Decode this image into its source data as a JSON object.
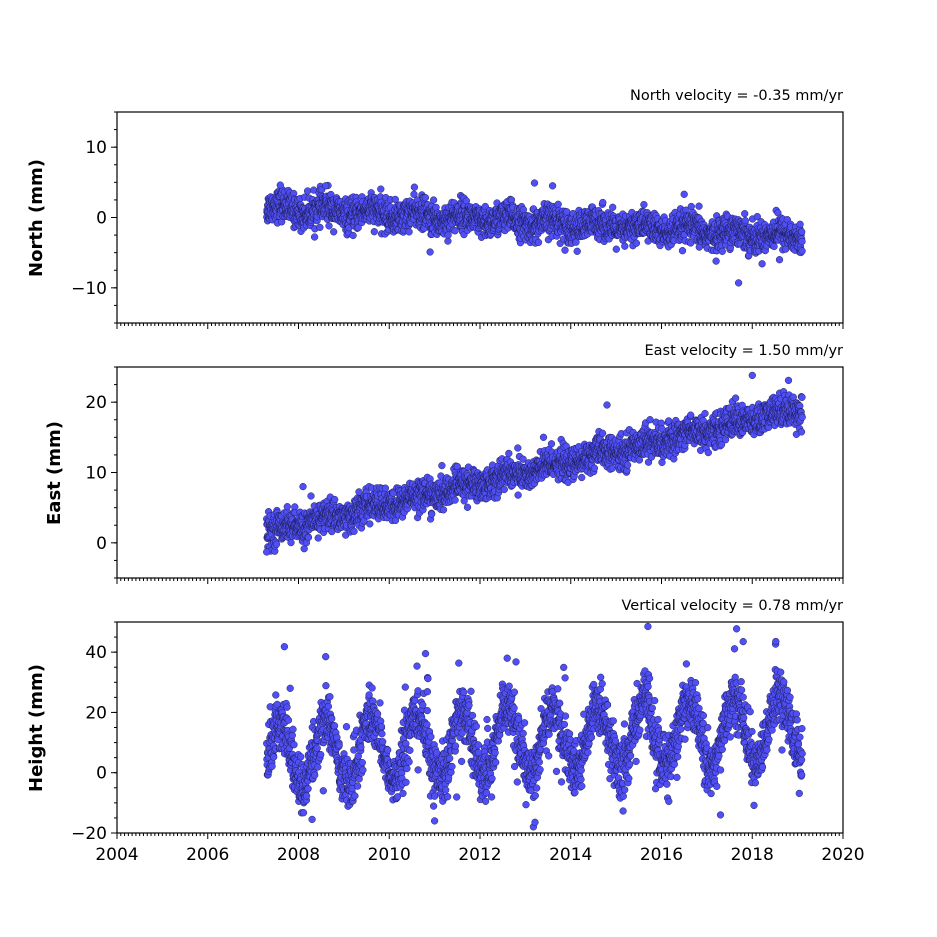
{
  "chart_data": [
    {
      "type": "scatter",
      "title": "North velocity = -0.35 mm/yr",
      "ylabel": "North (mm)",
      "xlim": [
        2004,
        2020
      ],
      "ylim": [
        -15,
        15
      ],
      "yticks": [
        -10,
        0,
        10
      ],
      "ytick_labels": [
        "−10",
        "0",
        "10"
      ],
      "x_start": 2007.3,
      "x_end": 2019.1,
      "velocity_mm_per_yr": -0.35,
      "offset_at_start": 1.4,
      "seasonal_amplitude": 0.6,
      "noise_sd": 1.1,
      "color": "#4f4ff5",
      "outliers": [
        [
          2007.6,
          4.6
        ],
        [
          2008.6,
          4.5
        ],
        [
          2010.9,
          -4.9
        ],
        [
          2013.2,
          4.9
        ],
        [
          2013.6,
          4.5
        ],
        [
          2016.5,
          3.3
        ],
        [
          2017.7,
          -9.3
        ],
        [
          2018.6,
          -6.0
        ]
      ]
    },
    {
      "type": "scatter",
      "title": "East velocity = 1.50 mm/yr",
      "ylabel": "East (mm)",
      "xlim": [
        2004,
        2020
      ],
      "ylim": [
        -5,
        25
      ],
      "yticks": [
        0,
        10,
        20
      ],
      "ytick_labels": [
        "0",
        "10",
        "20"
      ],
      "x_start": 2007.3,
      "x_end": 2019.1,
      "velocity_mm_per_yr": 1.5,
      "offset_at_start": 1.5,
      "seasonal_amplitude": 0.5,
      "noise_sd": 1.1,
      "color": "#4f4ff5",
      "outliers": [
        [
          2007.3,
          -1.3
        ],
        [
          2008.1,
          8.0
        ],
        [
          2014.8,
          19.6
        ],
        [
          2018.0,
          23.8
        ],
        [
          2018.8,
          23.1
        ],
        [
          2013.4,
          15.0
        ]
      ]
    },
    {
      "type": "scatter",
      "title": "Vertical velocity = 0.78 mm/yr",
      "ylabel": "Height (mm)",
      "xlim": [
        2004,
        2020
      ],
      "ylim": [
        -20,
        50
      ],
      "yticks": [
        -20,
        0,
        20,
        40
      ],
      "ytick_labels": [
        "−20",
        "0",
        "20",
        "40"
      ],
      "xticks": [
        2004,
        2006,
        2008,
        2010,
        2012,
        2014,
        2016,
        2018,
        2020
      ],
      "xtick_labels": [
        "2004",
        "2006",
        "2008",
        "2010",
        "2012",
        "2014",
        "2016",
        "2018",
        "2020"
      ],
      "x_start": 2007.3,
      "x_end": 2019.1,
      "velocity_mm_per_yr": 0.78,
      "offset_at_start": 6,
      "seasonal_amplitude": 11,
      "noise_sd": 4.5,
      "color": "#4f4ff5",
      "outliers": [
        [
          2008.6,
          38.5
        ],
        [
          2010.8,
          39.5
        ],
        [
          2012.6,
          38.0
        ],
        [
          2015.7,
          48.5
        ],
        [
          2017.8,
          43.5
        ],
        [
          2008.3,
          -15.5
        ],
        [
          2011.0,
          -16.0
        ],
        [
          2017.3,
          -14.0
        ]
      ]
    }
  ]
}
